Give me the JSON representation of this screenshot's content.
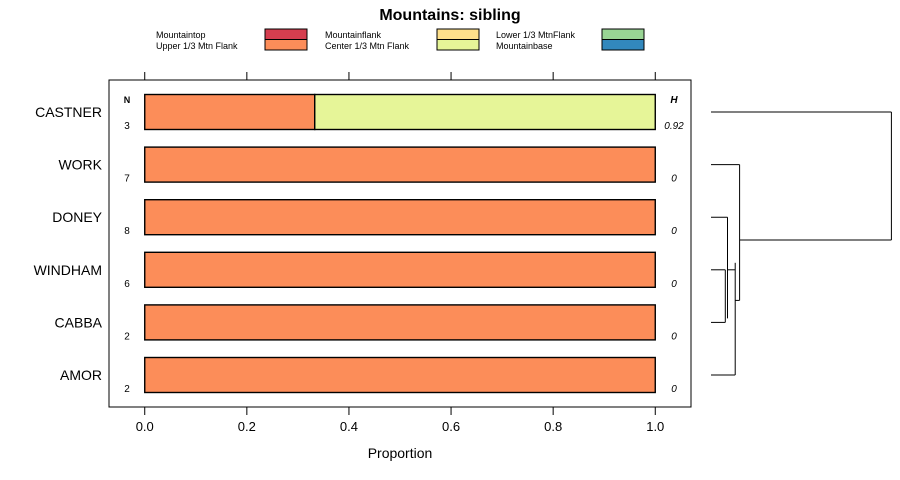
{
  "chart_data": {
    "type": "bar",
    "orientation": "horizontal",
    "stacked": true,
    "title": "Mountains: sibling",
    "xlabel": "Proportion",
    "ylabel": "",
    "xlim": [
      -0.07,
      1.07
    ],
    "xticks": [
      0.0,
      0.2,
      0.4,
      0.6,
      0.8,
      1.0
    ],
    "xtick_labels": [
      "0.0",
      "0.2",
      "0.4",
      "0.6",
      "0.8",
      "1.0"
    ],
    "n_header": "N",
    "h_header": "H",
    "legend_position": "top",
    "legend": [
      {
        "label": "Mountaintop",
        "color": "#d53e4f"
      },
      {
        "label": "Upper 1/3 Mtn Flank",
        "color": "#fc8d59"
      },
      {
        "label": "Mountainflank",
        "color": "#fee08b"
      },
      {
        "label": "Center 1/3 Mtn Flank",
        "color": "#e6f598"
      },
      {
        "label": "Lower 1/3 MtnFlank",
        "color": "#99d594"
      },
      {
        "label": "Mountainbase",
        "color": "#3288bd"
      }
    ],
    "categories": [
      "CASTNER",
      "WORK",
      "DONEY",
      "WINDHAM",
      "CABBA",
      "AMOR"
    ],
    "n": [
      "3",
      "7",
      "8",
      "6",
      "2",
      "2"
    ],
    "h": [
      "0.92",
      "0",
      "0",
      "0",
      "0",
      "0"
    ],
    "series": [
      {
        "name": "Mountaintop",
        "values": [
          0,
          0,
          0,
          0,
          0,
          0
        ]
      },
      {
        "name": "Upper 1/3 Mtn Flank",
        "values": [
          0.333,
          1,
          1,
          1,
          1,
          1
        ]
      },
      {
        "name": "Mountainflank",
        "values": [
          0,
          0,
          0,
          0,
          0,
          0
        ]
      },
      {
        "name": "Center 1/3 Mtn Flank",
        "values": [
          0.667,
          0,
          0,
          0,
          0,
          0
        ]
      },
      {
        "name": "Lower 1/3 MtnFlank",
        "values": [
          0,
          0,
          0,
          0,
          0,
          0
        ]
      },
      {
        "name": "Mountainbase",
        "values": [
          0,
          0,
          0,
          0,
          0,
          0
        ]
      }
    ],
    "dendrogram": {
      "linkage": [
        {
          "a": "WINDHAM",
          "b": "CABBA",
          "height": 0
        },
        {
          "a": "DONEY",
          "b": "WINDHAM+CABBA",
          "height": 0.08
        },
        {
          "a": "AMOR",
          "b": "DONEY+WINDHAM+CABBA",
          "height": 0.1
        },
        {
          "a": "WORK",
          "b": "AMOR+DONEY+WINDHAM+CABBA",
          "height": 0.12
        },
        {
          "a": "CASTNER",
          "b": "rest",
          "height": 0.82
        }
      ]
    }
  }
}
